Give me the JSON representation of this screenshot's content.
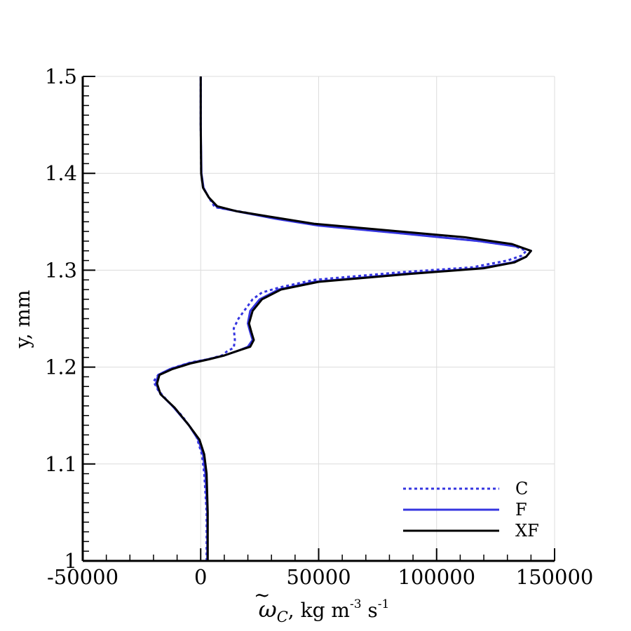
{
  "chart_data": {
    "type": "line",
    "xlabel": {
      "symbol": "ω",
      "symbol_subscript": "C",
      "units_1": ", kg m",
      "units_1_sup": "-3",
      "units_2": " s",
      "units_2_sup": "-1"
    },
    "ylabel": "y, mm",
    "xlim": [
      -50000,
      150000
    ],
    "ylim": [
      1.0,
      1.5
    ],
    "x_ticks": [
      -50000,
      0,
      50000,
      100000,
      150000
    ],
    "x_tick_labels": [
      "-50000",
      "0",
      "50000",
      "100000",
      "150000"
    ],
    "y_ticks": [
      1.0,
      1.1,
      1.2,
      1.3,
      1.4,
      1.5
    ],
    "y_tick_labels": [
      "1",
      "1.1",
      "1.2",
      "1.3",
      "1.4",
      "1.5"
    ],
    "grid": true,
    "legend_position": "bottom-right",
    "series": [
      {
        "name": "C",
        "color": "#3535e0",
        "style": "dotted",
        "points": [
          [
            2500,
            1.0
          ],
          [
            2500,
            1.05
          ],
          [
            1500,
            1.09
          ],
          [
            500,
            1.11
          ],
          [
            -2000,
            1.13
          ],
          [
            -8000,
            1.15
          ],
          [
            -14000,
            1.165
          ],
          [
            -18000,
            1.176
          ],
          [
            -20000,
            1.185
          ],
          [
            -18000,
            1.192
          ],
          [
            -12000,
            1.199
          ],
          [
            -4000,
            1.205
          ],
          [
            3000,
            1.208
          ],
          [
            9000,
            1.212
          ],
          [
            11000,
            1.216
          ],
          [
            14000,
            1.22
          ],
          [
            14500,
            1.228
          ],
          [
            14000,
            1.24
          ],
          [
            16000,
            1.25
          ],
          [
            19000,
            1.26
          ],
          [
            22000,
            1.27
          ],
          [
            26000,
            1.277
          ],
          [
            33000,
            1.282
          ],
          [
            48000,
            1.29
          ],
          [
            85000,
            1.298
          ],
          [
            115000,
            1.303
          ],
          [
            130000,
            1.31
          ],
          [
            136000,
            1.315
          ],
          [
            138000,
            1.32
          ],
          [
            133000,
            1.325
          ],
          [
            118000,
            1.33
          ],
          [
            90000,
            1.337
          ],
          [
            55000,
            1.345
          ],
          [
            35000,
            1.352
          ],
          [
            18000,
            1.36
          ],
          [
            6000,
            1.365
          ],
          [
            3500,
            1.375
          ],
          [
            1000,
            1.385
          ],
          [
            200,
            1.4
          ],
          [
            0,
            1.45
          ],
          [
            0,
            1.5
          ]
        ]
      },
      {
        "name": "F",
        "color": "#3535e0",
        "style": "solid",
        "points": [
          [
            2800,
            1.0
          ],
          [
            2800,
            1.05
          ],
          [
            2000,
            1.09
          ],
          [
            1000,
            1.11
          ],
          [
            -1000,
            1.125
          ],
          [
            -5000,
            1.14
          ],
          [
            -12000,
            1.16
          ],
          [
            -17000,
            1.172
          ],
          [
            -19000,
            1.183
          ],
          [
            -18000,
            1.192
          ],
          [
            -13000,
            1.198
          ],
          [
            -5000,
            1.204
          ],
          [
            3000,
            1.208
          ],
          [
            10000,
            1.212
          ],
          [
            16000,
            1.217
          ],
          [
            20000,
            1.221
          ],
          [
            22000,
            1.228
          ],
          [
            21000,
            1.236
          ],
          [
            20000,
            1.245
          ],
          [
            21000,
            1.258
          ],
          [
            25000,
            1.27
          ],
          [
            33000,
            1.28
          ],
          [
            48000,
            1.288
          ],
          [
            85000,
            1.296
          ],
          [
            118000,
            1.302
          ],
          [
            132000,
            1.308
          ],
          [
            138000,
            1.314
          ],
          [
            140000,
            1.32
          ],
          [
            135000,
            1.324
          ],
          [
            118000,
            1.33
          ],
          [
            85000,
            1.338
          ],
          [
            50000,
            1.346
          ],
          [
            32000,
            1.353
          ],
          [
            17000,
            1.36
          ],
          [
            7000,
            1.365
          ],
          [
            3500,
            1.375
          ],
          [
            1200,
            1.385
          ],
          [
            300,
            1.4
          ],
          [
            0,
            1.45
          ],
          [
            0,
            1.5
          ]
        ]
      },
      {
        "name": "XF",
        "color": "#000000",
        "style": "solid",
        "points": [
          [
            3000,
            1.0
          ],
          [
            3000,
            1.05
          ],
          [
            2500,
            1.09
          ],
          [
            1500,
            1.11
          ],
          [
            -500,
            1.125
          ],
          [
            -5000,
            1.14
          ],
          [
            -11000,
            1.158
          ],
          [
            -17000,
            1.172
          ],
          [
            -18500,
            1.183
          ],
          [
            -17500,
            1.192
          ],
          [
            -12000,
            1.198
          ],
          [
            -4000,
            1.204
          ],
          [
            3500,
            1.208
          ],
          [
            10000,
            1.212
          ],
          [
            16000,
            1.217
          ],
          [
            21000,
            1.221
          ],
          [
            22500,
            1.228
          ],
          [
            21500,
            1.236
          ],
          [
            20500,
            1.245
          ],
          [
            22000,
            1.258
          ],
          [
            26000,
            1.27
          ],
          [
            34000,
            1.28
          ],
          [
            50000,
            1.288
          ],
          [
            88000,
            1.296
          ],
          [
            120000,
            1.302
          ],
          [
            133000,
            1.308
          ],
          [
            138000,
            1.314
          ],
          [
            140000,
            1.32
          ],
          [
            132000,
            1.327
          ],
          [
            112000,
            1.334
          ],
          [
            80000,
            1.341
          ],
          [
            48000,
            1.348
          ],
          [
            30000,
            1.355
          ],
          [
            15000,
            1.361
          ],
          [
            7000,
            1.366
          ],
          [
            3500,
            1.375
          ],
          [
            1000,
            1.385
          ],
          [
            200,
            1.4
          ],
          [
            0,
            1.45
          ],
          [
            0,
            1.5
          ]
        ]
      }
    ]
  }
}
